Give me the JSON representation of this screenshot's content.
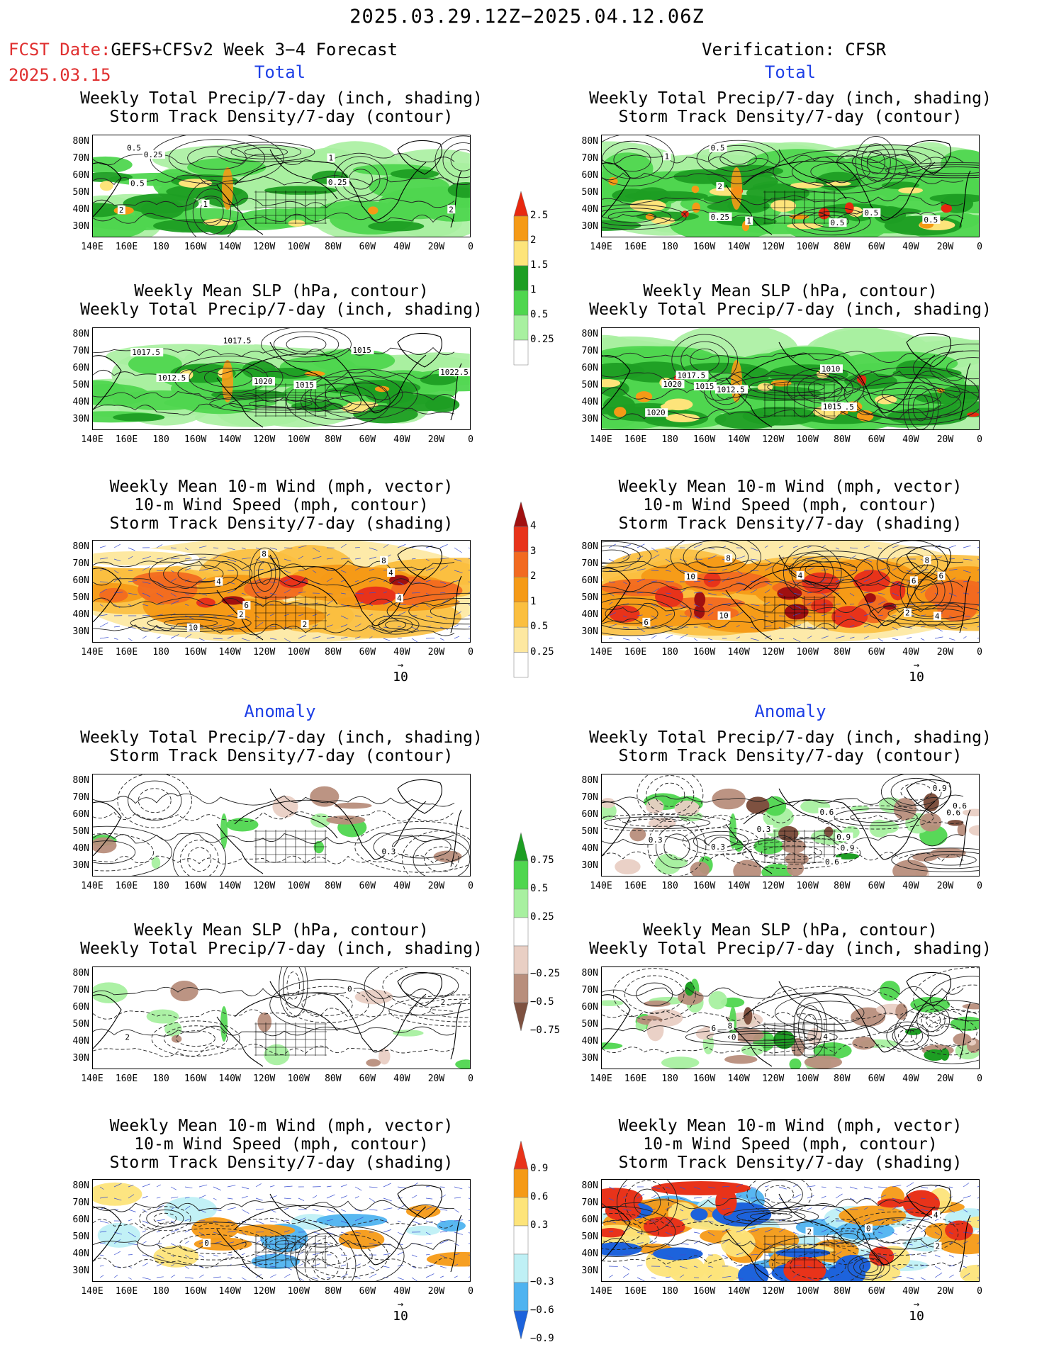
{
  "header": {
    "date_range": "2025.03.29.12Z−2025.04.12.06Z",
    "fcst_label": "FCST Date:",
    "fcst_model": "GEFS+CFSv2 Week 3−4 Forecast",
    "fcst_date": "2025.03.15",
    "verification": "Verification: CFSR"
  },
  "sections": {
    "total": "Total",
    "anomaly": "Anomaly"
  },
  "titles": {
    "precip_storm": [
      "Weekly Total Precip/7-day (inch, shading)",
      "Storm Track Density/7-day (contour)"
    ],
    "slp_precip": [
      "Weekly Mean SLP (hPa, contour)",
      "Weekly Total Precip/7-day (inch, shading)"
    ],
    "wind_storm": [
      "Weekly Mean 10-m Wind (mph, vector)",
      "10-m Wind Speed (mph, contour)",
      "Storm Track Density/7-day (shading)"
    ]
  },
  "axes": {
    "lat_labels": [
      "80N",
      "70N",
      "60N",
      "50N",
      "40N",
      "30N"
    ],
    "lon_labels": [
      "140E",
      "160E",
      "180",
      "160W",
      "140W",
      "120W",
      "100W",
      "80W",
      "60W",
      "40W",
      "20W",
      "0"
    ]
  },
  "colorbars": {
    "precip_total": {
      "labels": [
        "2.5",
        "2",
        "1.5",
        "1",
        "0.5",
        "0.25"
      ],
      "colors": [
        "#e8280f",
        "#f59a16",
        "#fde47a",
        "#1d9e23",
        "#4fd64f",
        "#a8f0a0"
      ]
    },
    "storm_total": {
      "labels": [
        "4",
        "3",
        "2",
        "1",
        "0.5",
        "0.25"
      ],
      "colors": [
        "#a01010",
        "#e8331a",
        "#f26a20",
        "#f59a16",
        "#fbbf3f",
        "#fde8a0"
      ]
    },
    "precip_anom": {
      "labels": [
        "0.75",
        "0.5",
        "0.25",
        "−0.25",
        "−0.5",
        "−0.75"
      ],
      "colors": [
        "#1d9e23",
        "#4fd64f",
        "#a8f0a0",
        "#e9cfc4",
        "#b88e7c",
        "#7e5140"
      ]
    },
    "storm_anom": {
      "labels": [
        "0.9",
        "0.6",
        "0.3",
        "−0.3",
        "−0.6",
        "−0.9"
      ],
      "colors": [
        "#e8331a",
        "#f59a16",
        "#fde47a",
        "#bff0f5",
        "#4fb3f0",
        "#1d63dc"
      ]
    }
  },
  "vector_ref": "10",
  "contour_labels": {
    "p1": [
      "0.25",
      "0.5",
      "0.25",
      "2",
      "1",
      "0.5",
      "1",
      "2"
    ],
    "p2": [
      "1",
      "0.5",
      "0.25",
      "0.5",
      "0.5",
      "1",
      "2",
      "0.5"
    ],
    "p3": [
      "1017.5",
      "1015",
      "1022.5",
      "1020",
      "1015",
      "1012.5",
      "1017.5"
    ],
    "p4": [
      "1017.5",
      "1012.5",
      "1015",
      "1020",
      "1017.5",
      "1015",
      "1020",
      "1010"
    ],
    "p5": [
      "2",
      "2",
      "4",
      "4",
      "8",
      "10",
      "4",
      "6",
      "8"
    ],
    "p6": [
      "2",
      "6",
      "4",
      "4",
      "6",
      "8",
      "6",
      "10",
      "8",
      "10"
    ],
    "p7": [
      "0.3"
    ],
    "p8": [
      "0.3",
      "0.6",
      "0.3",
      "0.9",
      "0.6",
      "0.3",
      "0.9",
      "0.6",
      "0.9",
      "0.6"
    ],
    "p9": [
      "2",
      "0",
      "2"
    ],
    "p10": [
      "8",
      "6",
      "4",
      "0"
    ],
    "p11": [
      "0"
    ],
    "p12": [
      "2",
      "4",
      "2",
      "0"
    ]
  }
}
